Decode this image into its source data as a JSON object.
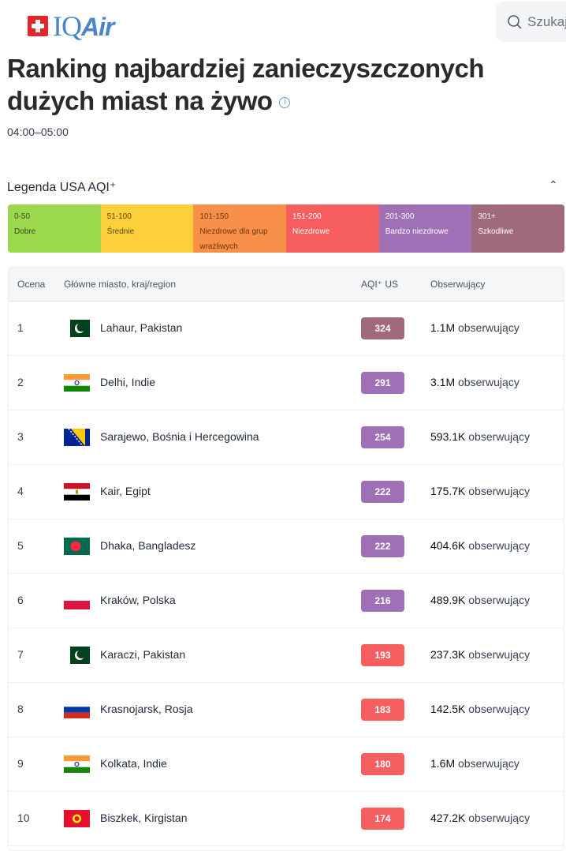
{
  "header": {
    "logo": "IQAir",
    "search_placeholder": "Szukaj",
    "search_icon": "search-icon"
  },
  "title": "Ranking najbardziej zanieczyszczonych dużych miast na żywo",
  "time_range": "04:00–05:00",
  "legend": {
    "title": "Legenda USA AQI⁺",
    "items": [
      {
        "range": "0-50",
        "label": "Dobre",
        "color": "#9cd84e",
        "text": "#3b4a1f"
      },
      {
        "range": "51-100",
        "label": "Średnie",
        "color": "#facf39",
        "text": "#5a4a10"
      },
      {
        "range": "101-150",
        "label": "Niezdrowe dla grup wrażliwych",
        "color": "#f99049",
        "text": "#6b3510"
      },
      {
        "range": "151-200",
        "label": "Niezdrowe",
        "color": "#f65e5f",
        "text": "#ffffff"
      },
      {
        "range": "201-300",
        "label": "Bardzo niezdrowe",
        "color": "#a070b6",
        "text": "#ffffff"
      },
      {
        "range": "301+",
        "label": "Szkodliwe",
        "color": "#a06a7b",
        "text": "#ffffff"
      }
    ]
  },
  "table": {
    "headers": {
      "rank": "Ocena",
      "city": "Główne miasto, kraj/region",
      "aqi": "AQI⁺ US",
      "followers": "Obserwujący"
    },
    "followers_suffix": "obserwujący",
    "rows": [
      {
        "rank": "1",
        "city": "Lahaur, Pakistan",
        "flag": "pk",
        "aqi": "324",
        "color": "#a06a7b",
        "followers": "1.1M"
      },
      {
        "rank": "2",
        "city": "Delhi, Indie",
        "flag": "in",
        "aqi": "291",
        "color": "#a070b6",
        "followers": "3.1M"
      },
      {
        "rank": "3",
        "city": "Sarajewo, Bośnia i Hercegowina",
        "flag": "ba",
        "aqi": "254",
        "color": "#a070b6",
        "followers": "593.1K"
      },
      {
        "rank": "4",
        "city": "Kair, Egipt",
        "flag": "eg",
        "aqi": "222",
        "color": "#a070b6",
        "followers": "175.7K"
      },
      {
        "rank": "5",
        "city": "Dhaka, Bangladesz",
        "flag": "bd",
        "aqi": "222",
        "color": "#a070b6",
        "followers": "404.6K"
      },
      {
        "rank": "6",
        "city": "Kraków, Polska",
        "flag": "pl",
        "aqi": "216",
        "color": "#a070b6",
        "followers": "489.9K"
      },
      {
        "rank": "7",
        "city": "Karaczi, Pakistan",
        "flag": "pk",
        "aqi": "193",
        "color": "#f65e5f",
        "followers": "237.3K"
      },
      {
        "rank": "8",
        "city": "Krasnojarsk, Rosja",
        "flag": "ru",
        "aqi": "183",
        "color": "#f65e5f",
        "followers": "142.5K"
      },
      {
        "rank": "9",
        "city": "Kolkata, Indie",
        "flag": "in",
        "aqi": "180",
        "color": "#f65e5f",
        "followers": "1.6M"
      },
      {
        "rank": "10",
        "city": "Biszkek, Kirgistan",
        "flag": "kg",
        "aqi": "174",
        "color": "#f65e5f",
        "followers": "427.2K"
      }
    ]
  }
}
